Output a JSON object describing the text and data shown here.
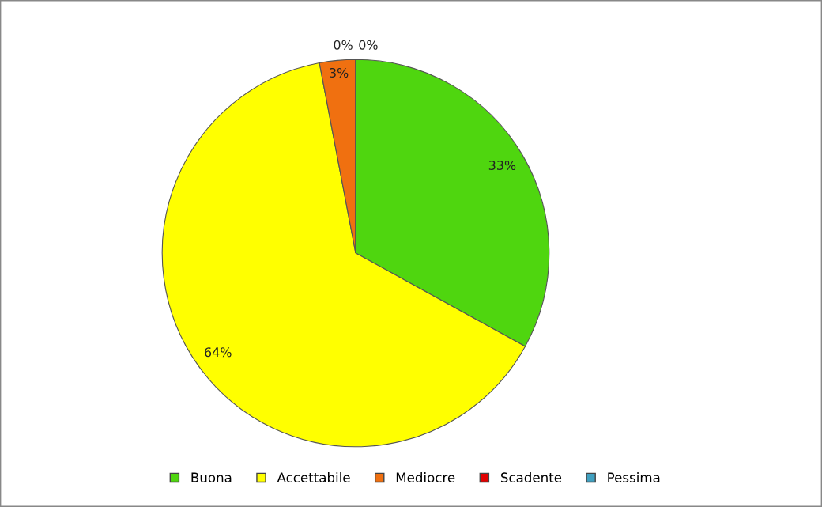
{
  "chart_data": {
    "type": "pie",
    "categories": [
      "Buona",
      "Accettabile",
      "Mediocre",
      "Scadente",
      "Pessima"
    ],
    "values": [
      33,
      64,
      3,
      0,
      0
    ],
    "colors": [
      "#4fd60f",
      "#ffff00",
      "#f07010",
      "#e00000",
      "#40a0c0"
    ],
    "value_labels": [
      "33%",
      "64%",
      "3%",
      "0%",
      "0%"
    ],
    "legend": "bottom"
  }
}
